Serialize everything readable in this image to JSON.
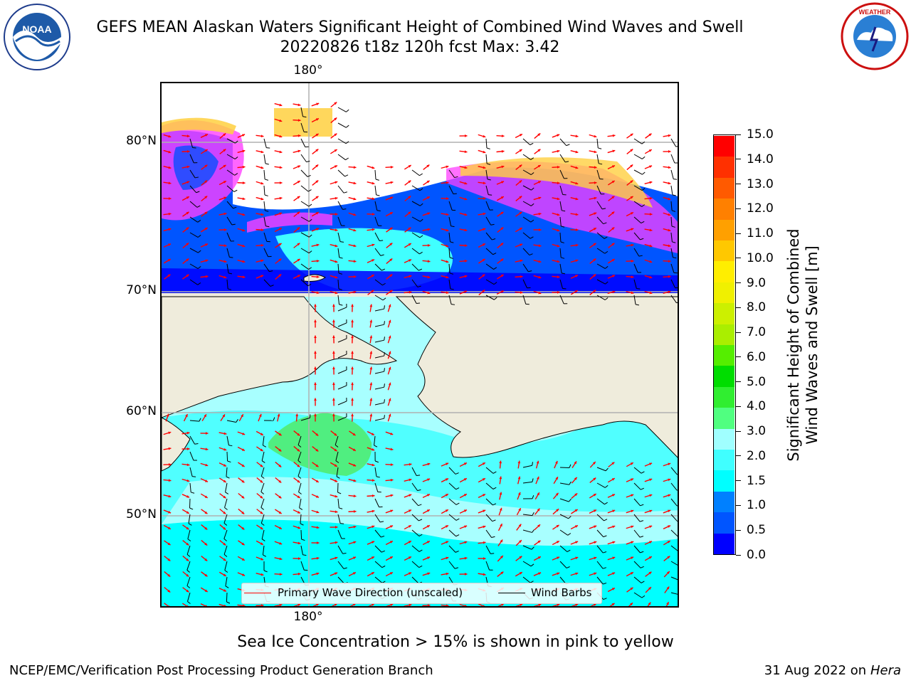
{
  "title_line1": "GEFS MEAN Alaskan Waters Significant Height of Combined Wind Waves and Swell",
  "title_line2": "20220826 t18z 120h fcst   Max: 3.42",
  "lon_label_top": "180°",
  "lon_label_bottom": "180°",
  "lat_labels": [
    "80°N",
    "70°N",
    "60°N",
    "50°N"
  ],
  "legend": {
    "wave_label": "Primary Wave Direction (unscaled)",
    "wind_label": "Wind Barbs",
    "wave_color": "#ff0000",
    "wind_color": "#000000"
  },
  "colorbar": {
    "label_line1": "Significant Height of Combined",
    "label_line2": "Wind Waves and Swell [m]",
    "ticks": [
      "15.0",
      "14.0",
      "13.0",
      "12.0",
      "11.0",
      "10.0",
      "9.0",
      "8.0",
      "7.0",
      "6.0",
      "5.0",
      "4.0",
      "3.0",
      "2.0",
      "1.5",
      "1.0",
      "0.5",
      "0.0"
    ],
    "colors_bottom_to_top": [
      "#0000ff",
      "#0055ff",
      "#0080ff",
      "#00ffff",
      "#40ffff",
      "#a0ffff",
      "#50ff80",
      "#30ee30",
      "#00dd00",
      "#55ee00",
      "#aaee00",
      "#ccf000",
      "#f0f000",
      "#ffee00",
      "#ffc800",
      "#ffa000",
      "#ff8000",
      "#ff5a00",
      "#ff3000",
      "#ff0000"
    ]
  },
  "map_colors": {
    "land": "#efecdc",
    "open_ocean_low": "#00ffff",
    "ocean_1_5_to_2": "#50ffff",
    "ocean_2_to_3": "#a8ffff",
    "ocean_3_to_4": "#50ee80",
    "arctic_low": "#0055ff",
    "arctic_very_low": "#0000ff",
    "ice_pink": "#ff40ff",
    "ice_yellow": "#ffd040",
    "grid": "#b0b0b0"
  },
  "note": "Sea Ice Concentration > 15% is shown in pink to yellow",
  "footer_left": "NCEP/EMC/Verification Post Processing Product Generation Branch",
  "footer_right_date": "31 Aug 2022 on",
  "footer_right_host": "Hera",
  "logos": {
    "left": "NOAA",
    "right_icon": "nws-seal"
  }
}
